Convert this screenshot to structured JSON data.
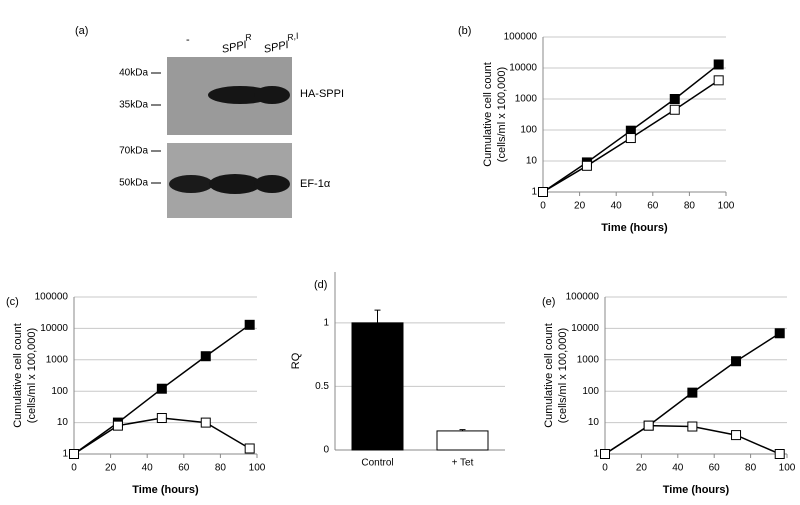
{
  "blot": {
    "panel_label": "(a)",
    "lanes": [
      {
        "base": "-"
      },
      {
        "base": "SPPI",
        "sup": "R"
      },
      {
        "base": "SPPI",
        "sup": "R,I"
      }
    ],
    "markers": [
      "40kDa",
      "35kDa",
      "70kDa",
      "50kDa"
    ],
    "bands": [
      "HA-SPPI",
      "EF-1α"
    ]
  },
  "chart_data": [
    {
      "type": "line",
      "panel_label": "(b)",
      "xlabel": "Time (hours)",
      "ylabel": [
        "Cumulative cell count",
        "(cells/ml x 100,000)"
      ],
      "log_y": true,
      "grid": true,
      "x": [
        0,
        24,
        48,
        72,
        96
      ],
      "series": [
        {
          "color": "#000000",
          "values": [
            1,
            9,
            95,
            1000,
            13000
          ]
        },
        {
          "color": "#ffffff",
          "values": [
            1,
            7,
            55,
            450,
            4000
          ]
        }
      ],
      "xlim": [
        0,
        100
      ],
      "xticks": [
        0,
        20,
        40,
        60,
        80,
        100
      ],
      "ylim": [
        1,
        100000
      ],
      "yticks": [
        1,
        10,
        100,
        1000,
        10000,
        100000
      ]
    },
    {
      "type": "line",
      "panel_label": "(c)",
      "xlabel": "Time (hours)",
      "ylabel": [
        "Cumulative cell count",
        "(cells/ml x 100,000)"
      ],
      "log_y": true,
      "grid": true,
      "x": [
        0,
        24,
        48,
        72,
        96
      ],
      "series": [
        {
          "color": "#000000",
          "values": [
            1,
            10,
            120,
            1300,
            13000
          ]
        },
        {
          "color": "#ffffff",
          "values": [
            1,
            8,
            14,
            10,
            1.5
          ]
        }
      ],
      "xlim": [
        0,
        100
      ],
      "xticks": [
        0,
        20,
        40,
        60,
        80,
        100
      ],
      "ylim": [
        1,
        100000
      ],
      "yticks": [
        1,
        10,
        100,
        1000,
        10000,
        100000
      ]
    },
    {
      "type": "bar",
      "panel_label": "(d)",
      "ylabel": "RQ",
      "grid": true,
      "categories": [
        "Control",
        "+ Tet"
      ],
      "values": [
        1,
        0.15
      ],
      "errors": [
        0.1,
        0.01
      ],
      "colors": [
        "#000000",
        "#ffffff"
      ],
      "ylim": [
        0,
        1.4
      ],
      "yticks": [
        0,
        0.5,
        1
      ]
    },
    {
      "type": "line",
      "panel_label": "(e)",
      "xlabel": "Time (hours)",
      "ylabel": [
        "Cumulative cell count",
        "(cells/ml x 100,000)"
      ],
      "log_y": true,
      "grid": true,
      "x": [
        0,
        24,
        48,
        72,
        96
      ],
      "series": [
        {
          "color": "#000000",
          "values": [
            1,
            8,
            90,
            900,
            7000
          ]
        },
        {
          "color": "#ffffff",
          "values": [
            1,
            8,
            7.5,
            4,
            1
          ]
        }
      ],
      "xlim": [
        0,
        100
      ],
      "xticks": [
        0,
        20,
        40,
        60,
        80,
        100
      ],
      "ylim": [
        1,
        100000
      ],
      "yticks": [
        1,
        10,
        100,
        1000,
        10000,
        100000
      ]
    }
  ]
}
